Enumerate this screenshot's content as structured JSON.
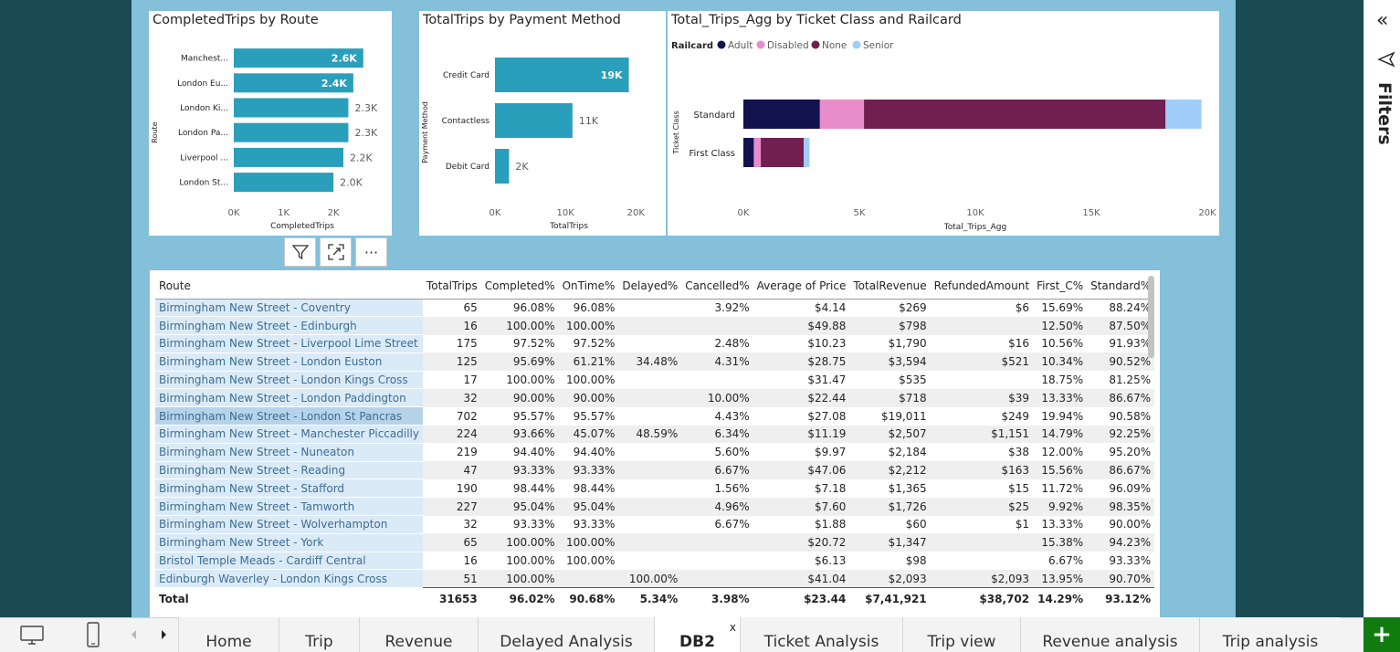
{
  "colors": {
    "bar": "#2a9fbc",
    "adult": "#12124f",
    "disabled": "#e88ccb",
    "none": "#711f50",
    "senior": "#a1cdfa",
    "canvas": "#85c0db",
    "frame": "#1a4b53"
  },
  "chart_data": [
    {
      "type": "bar",
      "orientation": "horizontal",
      "title": "CompletedTrips by Route",
      "xlabel": "CompletedTrips",
      "ylabel": "Route",
      "categories": [
        "Manchest...",
        "London Eu...",
        "London Ki...",
        "London Pa...",
        "Liverpool ...",
        "London St..."
      ],
      "values": [
        2600,
        2400,
        2300,
        2300,
        2200,
        2000
      ],
      "data_labels": [
        "2.6K",
        "2.4K",
        "2.3K",
        "2.3K",
        "2.2K",
        "2.0K"
      ],
      "xticks": [
        "0K",
        "1K",
        "2K"
      ],
      "xlim": [
        0,
        2750
      ]
    },
    {
      "type": "bar",
      "orientation": "horizontal",
      "title": "TotalTrips by Payment Method",
      "xlabel": "TotalTrips",
      "ylabel": "Payment Method",
      "categories": [
        "Credit Card",
        "Contactless",
        "Debit Card"
      ],
      "values": [
        19000,
        11000,
        2000
      ],
      "data_labels": [
        "19K",
        "11K",
        "2K"
      ],
      "xticks": [
        "0K",
        "10K",
        "20K"
      ],
      "xlim": [
        0,
        21000
      ]
    },
    {
      "type": "bar",
      "orientation": "horizontal",
      "stacked": true,
      "title": "Total_Trips_Agg by Ticket Class and Railcard",
      "xlabel": "Total_Trips_Agg",
      "ylabel": "Ticket Class",
      "legend_title": "Railcard",
      "legend_position": "top-left",
      "categories": [
        "Standard",
        "First Class"
      ],
      "series": [
        {
          "name": "Adult",
          "values": [
            3300,
            450
          ]
        },
        {
          "name": "Disabled",
          "values": [
            1900,
            300
          ]
        },
        {
          "name": "None",
          "values": [
            13000,
            1850
          ]
        },
        {
          "name": "Senior",
          "values": [
            1550,
            250
          ]
        }
      ],
      "xticks": [
        "0K",
        "5K",
        "10K",
        "15K",
        "20K"
      ],
      "xlim": [
        0,
        20000
      ]
    }
  ],
  "visual_header": {
    "filter_icon": "funnel-icon",
    "focus_icon": "focus-mode-icon",
    "more_label": "···"
  },
  "table": {
    "columns": [
      "Route",
      "TotalTrips",
      "Completed%",
      "OnTime%",
      "Delayed%",
      "Cancelled%",
      "Average of Price",
      "TotalRevenue",
      "RefundedAmount",
      "First_C%",
      "Standard%"
    ],
    "rows": [
      [
        "Birmingham New Street - Coventry",
        "65",
        "96.08%",
        "96.08%",
        "",
        "3.92%",
        "$4.14",
        "$269",
        "$6",
        "15.69%",
        "88.24%"
      ],
      [
        "Birmingham New Street - Edinburgh",
        "16",
        "100.00%",
        "100.00%",
        "",
        "",
        "$49.88",
        "$798",
        "",
        "12.50%",
        "87.50%"
      ],
      [
        "Birmingham New Street - Liverpool Lime Street",
        "175",
        "97.52%",
        "97.52%",
        "",
        "2.48%",
        "$10.23",
        "$1,790",
        "$16",
        "10.56%",
        "91.93%"
      ],
      [
        "Birmingham New Street - London Euston",
        "125",
        "95.69%",
        "61.21%",
        "34.48%",
        "4.31%",
        "$28.75",
        "$3,594",
        "$521",
        "10.34%",
        "90.52%"
      ],
      [
        "Birmingham New Street - London Kings Cross",
        "17",
        "100.00%",
        "100.00%",
        "",
        "",
        "$31.47",
        "$535",
        "",
        "18.75%",
        "81.25%"
      ],
      [
        "Birmingham New Street - London Paddington",
        "32",
        "90.00%",
        "90.00%",
        "",
        "10.00%",
        "$22.44",
        "$718",
        "$39",
        "13.33%",
        "86.67%"
      ],
      [
        "Birmingham New Street - London St Pancras",
        "702",
        "95.57%",
        "95.57%",
        "",
        "4.43%",
        "$27.08",
        "$19,011",
        "$249",
        "19.94%",
        "90.58%"
      ],
      [
        "Birmingham New Street - Manchester Piccadilly",
        "224",
        "93.66%",
        "45.07%",
        "48.59%",
        "6.34%",
        "$11.19",
        "$2,507",
        "$1,151",
        "14.79%",
        "92.25%"
      ],
      [
        "Birmingham New Street - Nuneaton",
        "219",
        "94.40%",
        "94.40%",
        "",
        "5.60%",
        "$9.97",
        "$2,184",
        "$38",
        "12.00%",
        "95.20%"
      ],
      [
        "Birmingham New Street - Reading",
        "47",
        "93.33%",
        "93.33%",
        "",
        "6.67%",
        "$47.06",
        "$2,212",
        "$163",
        "15.56%",
        "86.67%"
      ],
      [
        "Birmingham New Street - Stafford",
        "190",
        "98.44%",
        "98.44%",
        "",
        "1.56%",
        "$7.18",
        "$1,365",
        "$15",
        "11.72%",
        "96.09%"
      ],
      [
        "Birmingham New Street - Tamworth",
        "227",
        "95.04%",
        "95.04%",
        "",
        "4.96%",
        "$7.60",
        "$1,726",
        "$25",
        "9.92%",
        "98.35%"
      ],
      [
        "Birmingham New Street - Wolverhampton",
        "32",
        "93.33%",
        "93.33%",
        "",
        "6.67%",
        "$1.88",
        "$60",
        "$1",
        "13.33%",
        "90.00%"
      ],
      [
        "Birmingham New Street - York",
        "65",
        "100.00%",
        "100.00%",
        "",
        "",
        "$20.72",
        "$1,347",
        "",
        "15.38%",
        "94.23%"
      ],
      [
        "Bristol Temple Meads - Cardiff Central",
        "16",
        "100.00%",
        "100.00%",
        "",
        "",
        "$6.13",
        "$98",
        "",
        "6.67%",
        "93.33%"
      ],
      [
        "Edinburgh Waverley - London Kings Cross",
        "51",
        "100.00%",
        "",
        "100.00%",
        "",
        "$41.04",
        "$2,093",
        "$2,093",
        "13.95%",
        "90.70%"
      ]
    ],
    "selected_row": 6,
    "total": [
      "Total",
      "31653",
      "96.02%",
      "90.68%",
      "5.34%",
      "3.98%",
      "$23.44",
      "$7,41,921",
      "$38,702",
      "14.29%",
      "93.12%"
    ]
  },
  "filters_pane": {
    "label": "Filters",
    "collapse_glyph": "«"
  },
  "tabs": [
    {
      "label": "Home",
      "active": false
    },
    {
      "label": "Trip",
      "active": false
    },
    {
      "label": "Revenue",
      "active": false
    },
    {
      "label": "Delayed Analysis",
      "active": false
    },
    {
      "label": "DB2",
      "active": true,
      "close": "x"
    },
    {
      "label": "Ticket Analysis",
      "active": false
    },
    {
      "label": "Trip view",
      "active": false
    },
    {
      "label": "Revenue analysis",
      "active": false
    },
    {
      "label": "Trip analysis",
      "active": false
    }
  ],
  "add_page_label": "+"
}
